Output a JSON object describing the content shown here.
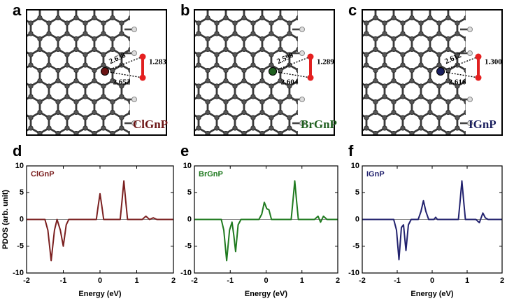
{
  "structures": [
    {
      "label": "a",
      "name": "ClGnP",
      "color": "#6b1414",
      "distances": [
        "2.638",
        "2.652",
        "1.283"
      ]
    },
    {
      "label": "b",
      "name": "BrGnP",
      "color": "#1e5e1e",
      "distances": [
        "2.599",
        "2.604",
        "1.289"
      ]
    },
    {
      "label": "c",
      "name": "IGnP",
      "color": "#1a1f5e",
      "distances": [
        "2.612",
        "2.616",
        "1.300"
      ]
    }
  ],
  "chart_data": [
    {
      "type": "line",
      "panel_label": "d",
      "xlabel": "Energy (eV)",
      "ylabel": "PDOS (arb. unit)",
      "x": [
        -2,
        -1.5,
        -1.42,
        -1.33,
        -1.24,
        -1.17,
        -1.08,
        -1.0,
        -0.92,
        -0.85,
        -0.1,
        -0.05,
        0,
        0.05,
        0.1,
        0.55,
        0.6,
        0.65,
        0.7,
        0.75,
        1.15,
        1.25,
        1.35,
        1.45,
        1.55,
        1.65,
        2
      ],
      "series": [
        {
          "name": "ClGnP",
          "color": "#7b2020",
          "values": [
            0,
            0,
            -2,
            -7.7,
            -2,
            0,
            -2,
            -5,
            -1,
            0,
            0,
            2.5,
            4.8,
            2.5,
            0,
            0,
            3.5,
            7.2,
            3.5,
            0,
            0,
            0.6,
            0,
            0.3,
            0,
            0,
            0
          ]
        }
      ],
      "xlim": [
        -2,
        2
      ],
      "ylim": [
        -10,
        10
      ],
      "xticks": [
        -2,
        -1,
        0,
        1,
        2
      ],
      "yticks": [
        -10,
        -5,
        0,
        5,
        10
      ]
    },
    {
      "type": "line",
      "panel_label": "e",
      "xlabel": "Energy (eV)",
      "x": [
        -2,
        -1.25,
        -1.18,
        -1.1,
        -1.02,
        -0.95,
        -0.9,
        -0.85,
        -0.78,
        -0.7,
        -0.2,
        -0.12,
        -0.05,
        0.02,
        0.08,
        0.15,
        0.7,
        0.75,
        0.8,
        0.85,
        0.9,
        1.35,
        1.45,
        1.52,
        1.6,
        1.7,
        2
      ],
      "series": [
        {
          "name": "BrGnP",
          "color": "#1f7a1f",
          "values": [
            0,
            0,
            -2,
            -7.7,
            -2,
            -0.5,
            -3,
            -6,
            -1,
            0,
            0,
            1,
            3.2,
            2,
            1.8,
            0,
            0,
            3.5,
            7.2,
            3.5,
            0,
            0,
            0.6,
            -0.5,
            0.6,
            0,
            0
          ]
        }
      ],
      "xlim": [
        -2,
        2
      ],
      "ylim": [
        -10,
        10
      ],
      "xticks": [
        -2,
        -1,
        0,
        1,
        2
      ],
      "yticks": [
        -10,
        -5,
        0,
        5,
        10
      ]
    },
    {
      "type": "line",
      "panel_label": "f",
      "xlabel": "Energy (eV)",
      "x": [
        -2,
        -1.1,
        -1.02,
        -0.95,
        -0.88,
        -0.82,
        -0.75,
        -0.68,
        -0.6,
        -0.4,
        -0.32,
        -0.25,
        -0.18,
        -0.1,
        0.05,
        0.1,
        0.15,
        0.75,
        0.8,
        0.85,
        0.9,
        0.95,
        1.25,
        1.35,
        1.45,
        1.52,
        1.6,
        2
      ],
      "series": [
        {
          "name": "IGnP",
          "color": "#22226e",
          "values": [
            0,
            0,
            -2,
            -7.5,
            -1.5,
            -1,
            -5.8,
            -1,
            0,
            0,
            1.5,
            3.5,
            1.5,
            0,
            0,
            0.4,
            0,
            0,
            3.5,
            7.2,
            3.5,
            0,
            0,
            -0.6,
            1.2,
            0.3,
            0,
            0
          ]
        }
      ],
      "xlim": [
        -2,
        2
      ],
      "ylim": [
        -10,
        10
      ],
      "xticks": [
        -2,
        -1,
        0,
        1,
        2
      ],
      "yticks": [
        -10,
        -5,
        0,
        5,
        10
      ]
    }
  ]
}
